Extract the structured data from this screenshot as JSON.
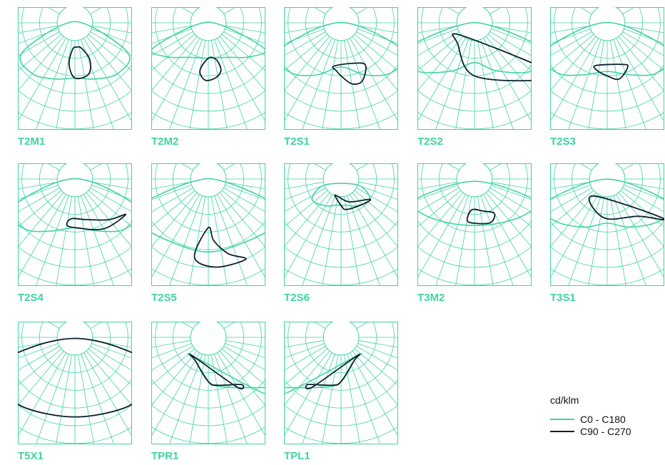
{
  "colors": {
    "grid": "#3fd3a3",
    "c0": "#3fd3a3",
    "c90": "#0e1f2e"
  },
  "legend": {
    "unit": "cd/klm",
    "items": [
      {
        "label": "C0 - C180",
        "color": "#3fd3a3"
      },
      {
        "label": "C90 - C270",
        "color": "#0e1f2e"
      }
    ]
  },
  "chart_data": [
    {
      "type": "polar",
      "code": "T2M1",
      "c0": [
        [
          80,
          30
        ],
        [
          60,
          140
        ],
        [
          40,
          150
        ],
        [
          20,
          135
        ],
        [
          0,
          125
        ],
        [
          -20,
          135
        ],
        [
          -40,
          150
        ],
        [
          -60,
          140
        ],
        [
          -80,
          30
        ]
      ],
      "c90": [
        [
          0,
          125
        ],
        [
          -8,
          95
        ],
        [
          -5,
          60
        ],
        [
          5,
          55
        ],
        [
          15,
          60
        ],
        [
          22,
          90
        ],
        [
          15,
          120
        ]
      ]
    },
    {
      "type": "polar",
      "code": "T2M2",
      "c0": [
        [
          80,
          30
        ],
        [
          65,
          140
        ],
        [
          50,
          120
        ],
        [
          30,
          90
        ],
        [
          0,
          80
        ],
        [
          -30,
          90
        ],
        [
          -50,
          120
        ],
        [
          -65,
          140
        ],
        [
          -80,
          30
        ]
      ],
      "c90": [
        [
          0,
          80
        ],
        [
          -10,
          110
        ],
        [
          -3,
          130
        ],
        [
          8,
          125
        ],
        [
          15,
          110
        ],
        [
          12,
          85
        ]
      ]
    },
    {
      "type": "polar",
      "code": "T2S1",
      "c0": [
        [
          80,
          40
        ],
        [
          65,
          160
        ],
        [
          45,
          160
        ],
        [
          25,
          130
        ],
        [
          0,
          100
        ],
        [
          -25,
          130
        ],
        [
          -45,
          160
        ],
        [
          -65,
          160
        ],
        [
          -80,
          40
        ]
      ],
      "c90": [
        [
          0,
          120
        ],
        [
          -5,
          110
        ],
        [
          -10,
          100
        ],
        [
          15,
          95
        ],
        [
          30,
          110
        ],
        [
          20,
          140
        ],
        [
          10,
          140
        ]
      ]
    },
    {
      "type": "polar",
      "code": "T2S2",
      "c0": [
        [
          80,
          40
        ],
        [
          68,
          180
        ],
        [
          50,
          170
        ],
        [
          25,
          120
        ],
        [
          0,
          90
        ],
        [
          -25,
          120
        ],
        [
          -50,
          170
        ],
        [
          -68,
          180
        ],
        [
          -80,
          40
        ]
      ],
      "c90": [
        [
          0,
          120
        ],
        [
          -40,
          60
        ],
        [
          -60,
          50
        ],
        [
          40,
          75
        ],
        [
          58,
          200
        ],
        [
          60,
          200
        ],
        [
          50,
          200
        ]
      ]
    },
    {
      "type": "polar",
      "code": "T2S3",
      "c0": [
        [
          80,
          40
        ],
        [
          65,
          160
        ],
        [
          45,
          160
        ],
        [
          25,
          130
        ],
        [
          0,
          110
        ],
        [
          -25,
          130
        ],
        [
          -45,
          160
        ],
        [
          -65,
          160
        ],
        [
          -80,
          40
        ]
      ],
      "c90": [
        [
          0,
          120
        ],
        [
          -12,
          110
        ],
        [
          -15,
          100
        ],
        [
          20,
          100
        ],
        [
          25,
          110
        ],
        [
          12,
          130
        ]
      ]
    },
    {
      "type": "polar",
      "code": "T2S4",
      "c0": [
        [
          80,
          40
        ],
        [
          65,
          160
        ],
        [
          45,
          160
        ],
        [
          25,
          130
        ],
        [
          0,
          110
        ],
        [
          -25,
          130
        ],
        [
          -45,
          160
        ],
        [
          -65,
          160
        ],
        [
          -80,
          40
        ]
      ],
      "c90": [
        [
          0,
          110
        ],
        [
          -10,
          105
        ],
        [
          -5,
          90
        ],
        [
          15,
          95
        ],
        [
          40,
          120
        ],
        [
          55,
          140
        ],
        [
          30,
          130
        ]
      ]
    },
    {
      "type": "polar",
      "code": "T2S5",
      "c0": [
        [
          80,
          40
        ],
        [
          68,
          185
        ],
        [
          55,
          185
        ],
        [
          30,
          165
        ],
        [
          0,
          165
        ],
        [
          -30,
          165
        ],
        [
          -55,
          185
        ],
        [
          -68,
          185
        ],
        [
          -80,
          40
        ]
      ],
      "c90": [
        [
          0,
          110
        ],
        [
          -10,
          180
        ],
        [
          5,
          200
        ],
        [
          25,
          200
        ],
        [
          15,
          175
        ],
        [
          5,
          140
        ]
      ]
    },
    {
      "type": "polar",
      "code": "T2S6",
      "c0": [
        [
          70,
          40
        ],
        [
          55,
          80
        ],
        [
          30,
          70
        ],
        [
          10,
          60
        ],
        [
          0,
          60
        ],
        [
          -10,
          60
        ],
        [
          -30,
          70
        ],
        [
          -55,
          80
        ],
        [
          -70,
          40
        ]
      ],
      "c90": [
        [
          0,
          60
        ],
        [
          -20,
          40
        ],
        [
          -10,
          40
        ],
        [
          20,
          55
        ],
        [
          55,
          80
        ],
        [
          40,
          75
        ],
        [
          10,
          70
        ]
      ]
    },
    {
      "type": "polar",
      "code": "T3M2",
      "c0": [
        [
          75,
          40
        ],
        [
          70,
          150
        ],
        [
          55,
          140
        ],
        [
          30,
          115
        ],
        [
          0,
          105
        ],
        [
          -30,
          115
        ],
        [
          -55,
          140
        ],
        [
          -70,
          150
        ],
        [
          -75,
          40
        ]
      ],
      "c90": [
        [
          0,
          100
        ],
        [
          -10,
          95
        ],
        [
          -5,
          70
        ],
        [
          15,
          75
        ],
        [
          30,
          90
        ],
        [
          20,
          105
        ]
      ]
    },
    {
      "type": "polar",
      "code": "T3S1",
      "c0": [
        [
          80,
          40
        ],
        [
          68,
          160
        ],
        [
          50,
          150
        ],
        [
          25,
          120
        ],
        [
          0,
          100
        ],
        [
          -25,
          120
        ],
        [
          -50,
          150
        ],
        [
          -68,
          160
        ],
        [
          -80,
          40
        ]
      ],
      "c90": [
        [
          0,
          90
        ],
        [
          -30,
          70
        ],
        [
          -40,
          50
        ],
        [
          40,
          80
        ],
        [
          55,
          160
        ],
        [
          40,
          110
        ]
      ]
    },
    {
      "type": "polar",
      "code": "T5X1",
      "c0": [
        [
          80,
          60
        ],
        [
          70,
          220
        ],
        [
          55,
          205
        ],
        [
          35,
          195
        ],
        [
          0,
          180
        ],
        [
          -35,
          195
        ],
        [
          -55,
          205
        ],
        [
          -70,
          220
        ],
        [
          -80,
          60
        ]
      ],
      "c90": [
        [
          80,
          60
        ],
        [
          70,
          220
        ],
        [
          55,
          205
        ],
        [
          35,
          195
        ],
        [
          0,
          180
        ],
        [
          -35,
          195
        ],
        [
          -55,
          205
        ],
        [
          -70,
          220
        ],
        [
          -80,
          60
        ]
      ]
    },
    {
      "type": "polar",
      "code": "TPR1",
      "c0": [
        [
          0,
          100
        ],
        [
          -30,
          60
        ],
        [
          -40,
          55
        ],
        [
          45,
          180
        ],
        [
          55,
          200
        ],
        [
          20,
          120
        ]
      ],
      "c90": [
        [
          0,
          100
        ],
        [
          -30,
          60
        ],
        [
          -40,
          55
        ],
        [
          30,
          130
        ],
        [
          35,
          130
        ],
        [
          10,
          110
        ]
      ]
    },
    {
      "type": "polar",
      "code": "TPL1",
      "c0": [
        [
          0,
          100
        ],
        [
          30,
          60
        ],
        [
          40,
          55
        ],
        [
          -45,
          180
        ],
        [
          -55,
          200
        ],
        [
          -20,
          120
        ]
      ],
      "c90": [
        [
          0,
          100
        ],
        [
          30,
          60
        ],
        [
          40,
          55
        ],
        [
          -30,
          130
        ],
        [
          -35,
          130
        ],
        [
          -10,
          110
        ]
      ]
    }
  ]
}
